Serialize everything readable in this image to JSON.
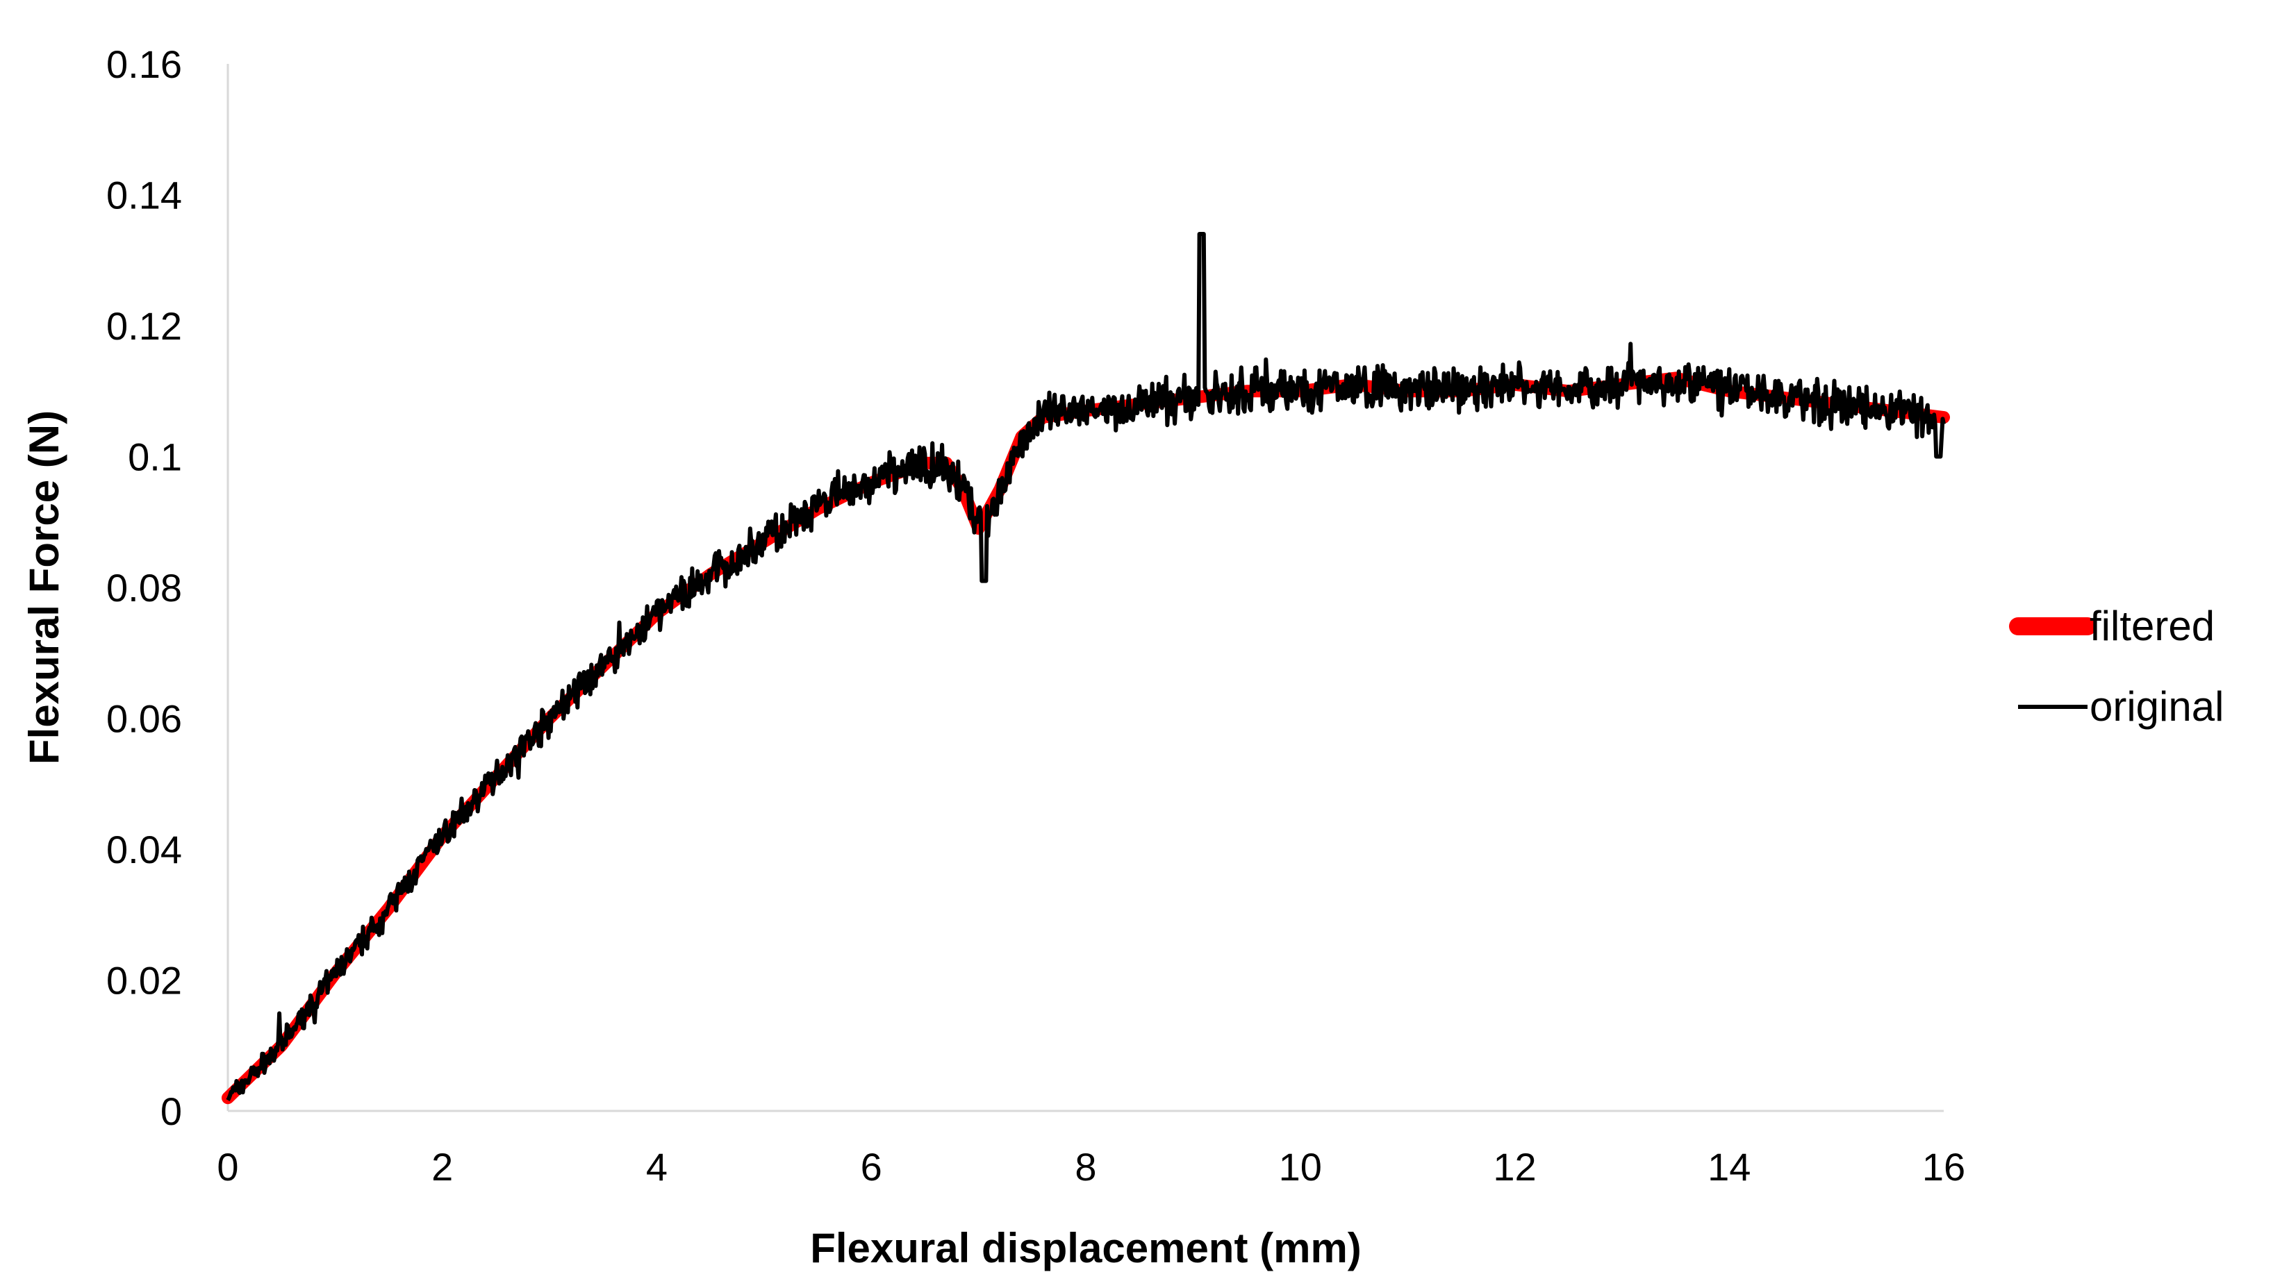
{
  "chart_data": {
    "type": "line",
    "title": "",
    "xlabel": "Flexural displacement (mm)",
    "ylabel": "Flexural Force (N)",
    "xlim": [
      0,
      16
    ],
    "ylim": [
      0,
      0.16
    ],
    "x_ticks": [
      0,
      2,
      4,
      6,
      8,
      10,
      12,
      14,
      16
    ],
    "y_ticks": [
      0,
      0.02,
      0.04,
      0.06,
      0.08,
      0.1,
      0.12,
      0.14,
      0.16
    ],
    "x_tick_labels": [
      "0",
      "2",
      "4",
      "6",
      "8",
      "10",
      "12",
      "14",
      "16"
    ],
    "y_tick_labels": [
      "0",
      "0.02",
      "0.04",
      "0.06",
      "0.08",
      "0.1",
      "0.12",
      "0.14",
      "0.16"
    ],
    "grid": false,
    "legend_position": "right",
    "series": [
      {
        "name": "filtered",
        "color": "#ff0000",
        "x": [
          0,
          0.5,
          1,
          1.5,
          2,
          2.5,
          3,
          3.5,
          4,
          4.5,
          5,
          5.5,
          6,
          6.5,
          6.7,
          6.85,
          7.0,
          7.2,
          7.4,
          7.6,
          8,
          8.5,
          9,
          9.5,
          10,
          10.5,
          11,
          11.5,
          12,
          12.5,
          13,
          13.5,
          14,
          14.5,
          15,
          15.5,
          16
        ],
        "y": [
          0.002,
          0.01,
          0.021,
          0.031,
          0.042,
          0.051,
          0.06,
          0.068,
          0.076,
          0.082,
          0.087,
          0.092,
          0.096,
          0.099,
          0.099,
          0.095,
          0.089,
          0.095,
          0.103,
          0.106,
          0.107,
          0.108,
          0.109,
          0.11,
          0.11,
          0.111,
          0.11,
          0.11,
          0.111,
          0.11,
          0.111,
          0.112,
          0.11,
          0.109,
          0.108,
          0.107,
          0.106
        ]
      },
      {
        "name": "original",
        "color": "#000000",
        "x": [
          0,
          0.5,
          1,
          1.5,
          2,
          2.5,
          3,
          3.5,
          4,
          4.5,
          5,
          5.5,
          6,
          6.5,
          6.7,
          6.85,
          7.0,
          7.2,
          7.4,
          7.6,
          8,
          8.5,
          9,
          9.5,
          10,
          10.5,
          11,
          11.5,
          12,
          12.5,
          13,
          13.5,
          14,
          14.5,
          15,
          15.5,
          16
        ],
        "y": [
          0.002,
          0.01,
          0.021,
          0.031,
          0.042,
          0.051,
          0.06,
          0.068,
          0.076,
          0.082,
          0.087,
          0.092,
          0.096,
          0.099,
          0.099,
          0.095,
          0.089,
          0.095,
          0.103,
          0.106,
          0.107,
          0.108,
          0.109,
          0.11,
          0.11,
          0.111,
          0.11,
          0.11,
          0.111,
          0.11,
          0.111,
          0.112,
          0.11,
          0.109,
          0.108,
          0.107,
          0.106
        ],
        "features": [
          {
            "x": 7.05,
            "y": 0.081
          },
          {
            "x": 9.08,
            "y": 0.134
          },
          {
            "x": 15.95,
            "y": 0.1
          }
        ]
      }
    ]
  }
}
